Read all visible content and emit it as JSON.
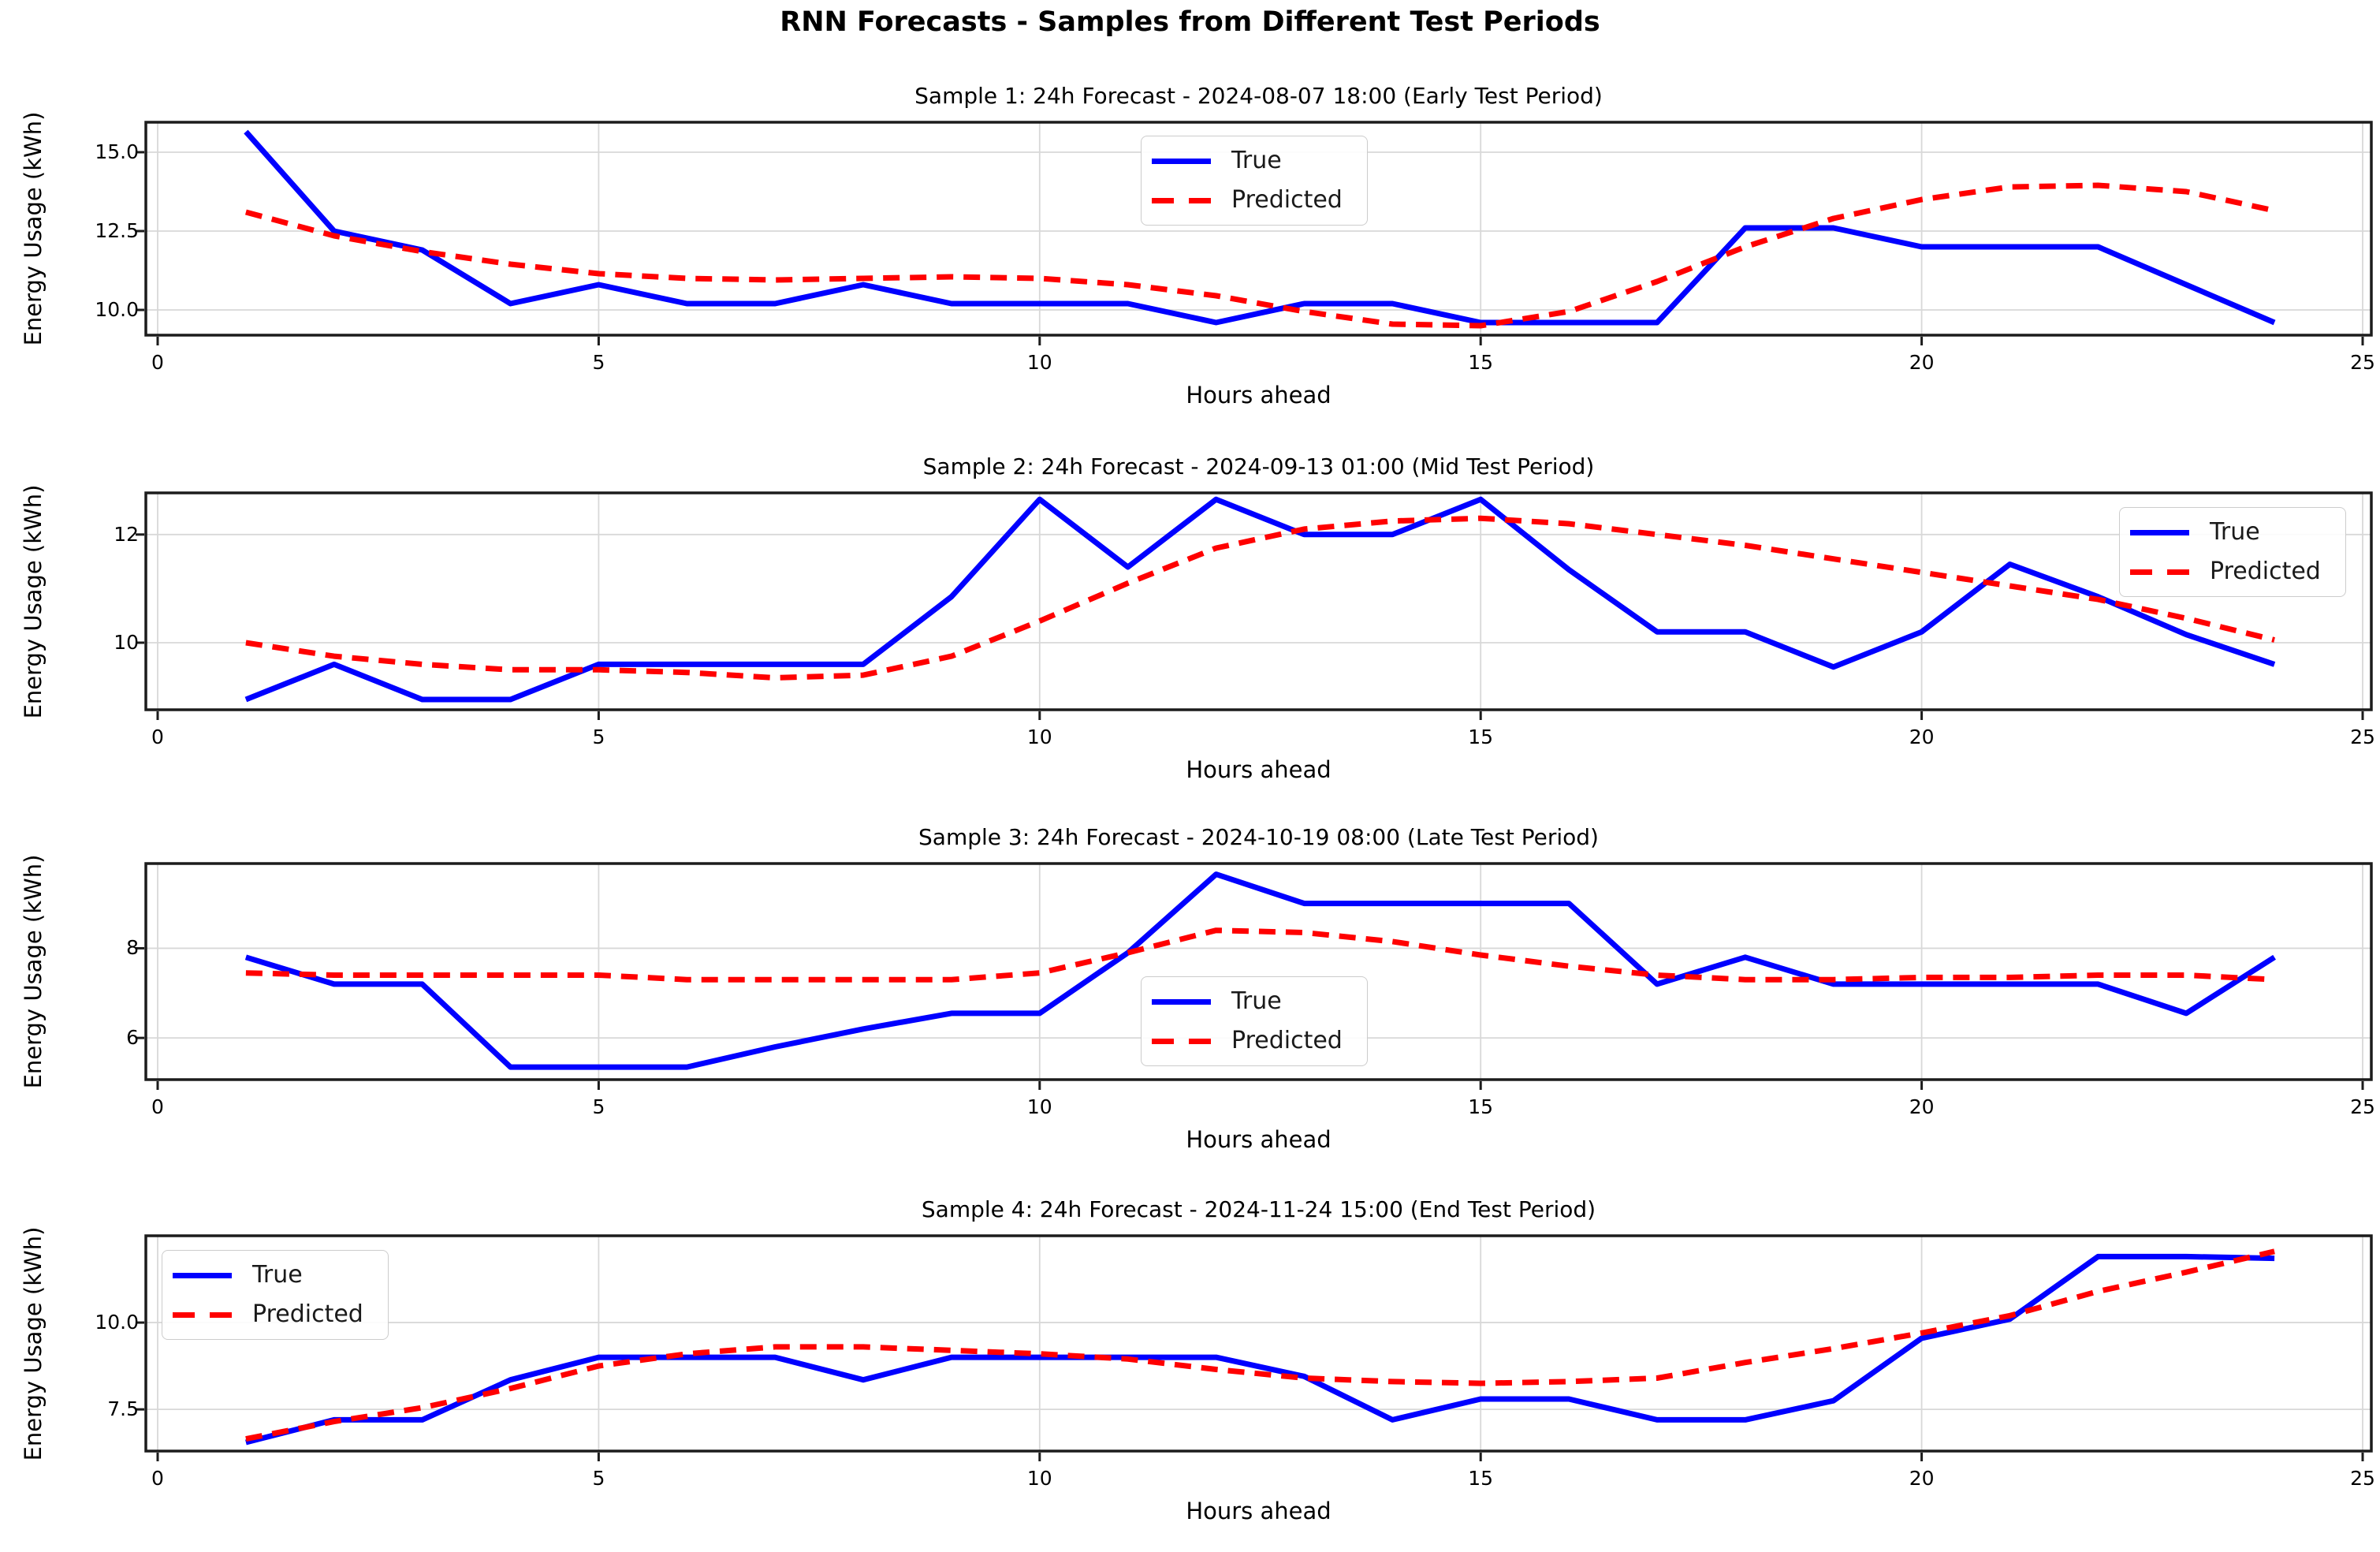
{
  "figure": {
    "suptitle": "RNN Forecasts - Samples from Different Test Periods",
    "background_color": "#ffffff",
    "text_color": "#000000"
  },
  "legend": {
    "true_label": "True",
    "predicted_label": "Predicted"
  },
  "colors": {
    "true_line": "#0000ff",
    "predicted_line": "#ff0000",
    "grid": "#d8d8d8",
    "spine": "#1c1c1c",
    "tick": "#1c1c1c",
    "legend_border": "#cccccc",
    "legend_background": "#ffffff"
  },
  "chart_data": [
    {
      "type": "line",
      "title": "Sample 1: 24h Forecast - 2024-08-07 18:00 (Early Test Period)",
      "xlabel": "Hours ahead",
      "ylabel": "Energy Usage (kWh)",
      "x": [
        1,
        2,
        3,
        4,
        5,
        6,
        7,
        8,
        9,
        10,
        11,
        12,
        13,
        14,
        15,
        16,
        17,
        18,
        19,
        20,
        21,
        22,
        23,
        24
      ],
      "series": [
        {
          "name": "True",
          "style": "solid",
          "color": "#0000ff",
          "values": [
            15.65,
            12.5,
            11.9,
            10.2,
            10.8,
            10.2,
            10.2,
            10.8,
            10.2,
            10.2,
            10.2,
            9.6,
            10.2,
            10.2,
            9.6,
            9.6,
            9.6,
            12.6,
            12.6,
            12.0,
            12.0,
            12.0,
            10.8,
            9.6
          ]
        },
        {
          "name": "Predicted",
          "style": "dashed",
          "color": "#ff0000",
          "values": [
            13.1,
            12.35,
            11.85,
            11.45,
            11.15,
            11.0,
            10.95,
            11.0,
            11.05,
            11.0,
            10.8,
            10.45,
            9.95,
            9.55,
            9.5,
            9.95,
            10.9,
            12.0,
            12.9,
            13.5,
            13.9,
            13.95,
            13.75,
            13.15
          ]
        }
      ],
      "xlim": [
        -0.13,
        25.1
      ],
      "ylim": [
        9.2,
        15.95
      ],
      "xticks": [
        0,
        5,
        10,
        15,
        20,
        25
      ],
      "xtick_labels": [
        "0",
        "5",
        "10",
        "15",
        "20",
        "25"
      ],
      "yticks": [
        10.0,
        12.5,
        15.0
      ],
      "ytick_labels": [
        "10.0",
        "12.5",
        "15.0"
      ],
      "grid": true,
      "legend_loc": "upper center"
    },
    {
      "type": "line",
      "title": "Sample 2: 24h Forecast - 2024-09-13 01:00 (Mid Test Period)",
      "xlabel": "Hours ahead",
      "ylabel": "Energy Usage (kWh)",
      "x": [
        1,
        2,
        3,
        4,
        5,
        6,
        7,
        8,
        9,
        10,
        11,
        12,
        13,
        14,
        15,
        16,
        17,
        18,
        19,
        20,
        21,
        22,
        23,
        24
      ],
      "series": [
        {
          "name": "True",
          "style": "solid",
          "color": "#0000ff",
          "values": [
            8.95,
            9.6,
            8.95,
            8.95,
            9.6,
            9.6,
            9.6,
            9.6,
            10.85,
            12.65,
            11.4,
            12.65,
            12.0,
            12.0,
            12.65,
            11.35,
            10.2,
            10.2,
            9.55,
            10.2,
            11.45,
            10.85,
            10.15,
            9.6
          ]
        },
        {
          "name": "Predicted",
          "style": "dashed",
          "color": "#ff0000",
          "values": [
            10.0,
            9.75,
            9.6,
            9.5,
            9.5,
            9.45,
            9.35,
            9.4,
            9.75,
            10.4,
            11.1,
            11.75,
            12.1,
            12.25,
            12.3,
            12.2,
            12.0,
            11.8,
            11.55,
            11.3,
            11.05,
            10.8,
            10.45,
            10.05
          ]
        }
      ],
      "xlim": [
        -0.13,
        25.1
      ],
      "ylim": [
        8.76,
        12.77
      ],
      "xticks": [
        0,
        5,
        10,
        15,
        20,
        25
      ],
      "xtick_labels": [
        "0",
        "5",
        "10",
        "15",
        "20",
        "25"
      ],
      "yticks": [
        10,
        12
      ],
      "ytick_labels": [
        "10",
        "12"
      ],
      "grid": true,
      "legend_loc": "upper right"
    },
    {
      "type": "line",
      "title": "Sample 3: 24h Forecast - 2024-10-19 08:00 (Late Test Period)",
      "xlabel": "Hours ahead",
      "ylabel": "Energy Usage (kWh)",
      "x": [
        1,
        2,
        3,
        4,
        5,
        6,
        7,
        8,
        9,
        10,
        11,
        12,
        13,
        14,
        15,
        16,
        17,
        18,
        19,
        20,
        21,
        22,
        23,
        24
      ],
      "series": [
        {
          "name": "True",
          "style": "solid",
          "color": "#0000ff",
          "values": [
            7.8,
            7.2,
            7.2,
            5.35,
            5.35,
            5.35,
            5.8,
            6.2,
            6.55,
            6.55,
            7.9,
            9.65,
            9.0,
            9.0,
            9.0,
            9.0,
            7.2,
            7.8,
            7.2,
            7.2,
            7.2,
            7.2,
            6.55,
            7.8
          ]
        },
        {
          "name": "Predicted",
          "style": "dashed",
          "color": "#ff0000",
          "values": [
            7.45,
            7.4,
            7.4,
            7.4,
            7.4,
            7.3,
            7.3,
            7.3,
            7.3,
            7.45,
            7.9,
            8.4,
            8.35,
            8.15,
            7.85,
            7.6,
            7.4,
            7.3,
            7.3,
            7.35,
            7.35,
            7.4,
            7.4,
            7.3
          ]
        }
      ],
      "xlim": [
        -0.13,
        25.1
      ],
      "ylim": [
        5.07,
        9.89
      ],
      "xticks": [
        0,
        5,
        10,
        15,
        20,
        25
      ],
      "xtick_labels": [
        "0",
        "5",
        "10",
        "15",
        "20",
        "25"
      ],
      "yticks": [
        6,
        8
      ],
      "ytick_labels": [
        "6",
        "8"
      ],
      "grid": true,
      "legend_loc": "center"
    },
    {
      "type": "line",
      "title": "Sample 4: 24h Forecast - 2024-11-24 15:00 (End Test Period)",
      "xlabel": "Hours ahead",
      "ylabel": "Energy Usage (kWh)",
      "x": [
        1,
        2,
        3,
        4,
        5,
        6,
        7,
        8,
        9,
        10,
        11,
        12,
        13,
        14,
        15,
        16,
        17,
        18,
        19,
        20,
        21,
        22,
        23,
        24
      ],
      "series": [
        {
          "name": "True",
          "style": "solid",
          "color": "#0000ff",
          "values": [
            6.55,
            7.2,
            7.2,
            8.35,
            9.0,
            9.0,
            9.0,
            8.35,
            9.0,
            9.0,
            9.0,
            9.0,
            8.45,
            7.2,
            7.8,
            7.8,
            7.2,
            7.2,
            7.75,
            9.55,
            10.1,
            11.9,
            11.9,
            11.85
          ]
        },
        {
          "name": "Predicted",
          "style": "dashed",
          "color": "#ff0000",
          "values": [
            6.65,
            7.15,
            7.55,
            8.1,
            8.75,
            9.1,
            9.3,
            9.3,
            9.2,
            9.1,
            8.95,
            8.65,
            8.4,
            8.3,
            8.25,
            8.3,
            8.4,
            8.85,
            9.25,
            9.7,
            10.2,
            10.9,
            11.45,
            12.05
          ]
        }
      ],
      "xlim": [
        -0.13,
        25.1
      ],
      "ylim": [
        6.3,
        12.5
      ],
      "xticks": [
        0,
        5,
        10,
        15,
        20,
        25
      ],
      "xtick_labels": [
        "0",
        "5",
        "10",
        "15",
        "20",
        "25"
      ],
      "yticks": [
        7.5,
        10.0
      ],
      "ytick_labels": [
        "7.5",
        "10.0"
      ],
      "grid": true,
      "legend_loc": "upper left"
    }
  ]
}
